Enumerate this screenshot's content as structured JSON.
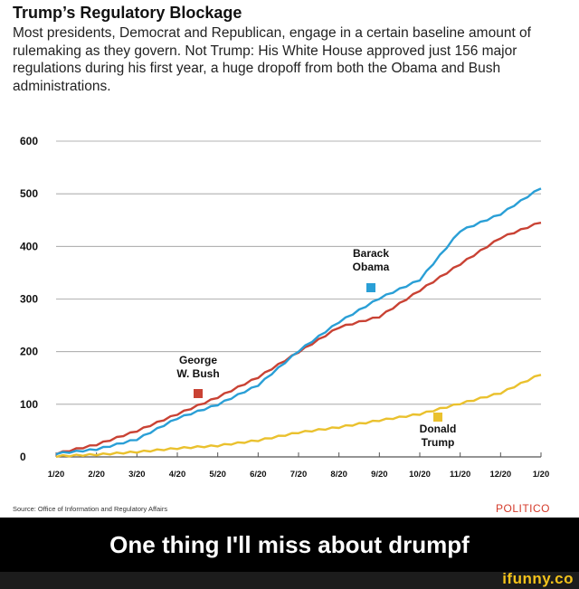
{
  "header": {
    "title": "Trump’s Regulatory Blockage",
    "subtitle": "Most presidents, Democrat and Republican, engage in a certain baseline amount of rulemaking as they govern. Not Trump: His White House approved just 156 major regulations during his first year, a huge dropoff from both the Obama and Bush administrations."
  },
  "footer": {
    "source": "Source: Office of Information and Regulatory Affairs",
    "brand": "POLITICO",
    "caption": "One thing I'll miss about drumpf",
    "watermark": "ifunny.co"
  },
  "colors": {
    "obama": "#2a9fd6",
    "bush": "#c94234",
    "trump": "#eac12e",
    "grid": "#9a9a9a"
  },
  "chart_data": {
    "type": "line",
    "title": "",
    "xlabel": "",
    "ylabel": "",
    "ylim": [
      0,
      600
    ],
    "yticks": [
      "0",
      "100",
      "200",
      "300",
      "400",
      "500",
      "600"
    ],
    "categories": [
      "1/20",
      "2/20",
      "3/20",
      "4/20",
      "5/20",
      "6/20",
      "7/20",
      "8/20",
      "9/20",
      "10/20",
      "11/20",
      "12/20",
      "1/20"
    ],
    "grid": true,
    "series": [
      {
        "name": "Barack Obama",
        "label": [
          "Barack",
          "Obama"
        ],
        "values": [
          5,
          13,
          32,
          72,
          98,
          135,
          200,
          255,
          300,
          335,
          428,
          460,
          510
        ]
      },
      {
        "name": "George W. Bush",
        "label": [
          "George",
          "W. Bush"
        ],
        "values": [
          5,
          22,
          48,
          80,
          112,
          150,
          198,
          245,
          265,
          315,
          365,
          415,
          445
        ]
      },
      {
        "name": "Donald Trump",
        "label": [
          "Donald",
          "Trump"
        ],
        "values": [
          0,
          3,
          8,
          15,
          20,
          30,
          45,
          55,
          68,
          80,
          100,
          120,
          156
        ]
      }
    ]
  }
}
